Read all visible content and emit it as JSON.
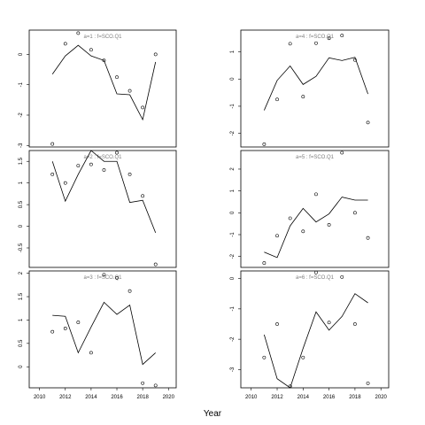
{
  "chart_data": {
    "type": "scatter",
    "xlabel": "Year",
    "x_ticks": [
      2010,
      2012,
      2014,
      2016,
      2018,
      2020
    ],
    "xlim": [
      2009.2,
      2020.6
    ],
    "panels": [
      {
        "title": "a=1 : f=SCO.Q1",
        "ylim": [
          -3.05,
          0.8
        ],
        "y_ticks": [
          0,
          -1,
          -2,
          -3
        ],
        "points": {
          "x": [
            2011,
            2012,
            2013,
            2014,
            2015,
            2016,
            2017,
            2018,
            2019
          ],
          "y": [
            -2.95,
            0.35,
            0.7,
            0.15,
            -0.2,
            -0.75,
            -1.2,
            -1.75,
            0.0
          ]
        },
        "line": {
          "x": [
            2011,
            2012,
            2013,
            2014,
            2015,
            2016,
            2017,
            2018,
            2019
          ],
          "y": [
            -0.65,
            -0.05,
            0.3,
            -0.05,
            -0.2,
            -1.3,
            -1.33,
            -2.15,
            -0.25
          ]
        }
      },
      {
        "title": "a=2 : f=SCO.Q1",
        "ylim": [
          -0.95,
          1.75
        ],
        "y_ticks": [
          1.5,
          1.0,
          0.5,
          0.0,
          -0.5
        ],
        "points": {
          "x": [
            2011,
            2012,
            2013,
            2014,
            2015,
            2016,
            2017,
            2018,
            2019
          ],
          "y": [
            1.2,
            1.0,
            1.4,
            1.43,
            1.3,
            1.7,
            1.2,
            0.7,
            -0.88
          ]
        },
        "line": {
          "x": [
            2011,
            2012,
            2013,
            2014,
            2015,
            2016,
            2017,
            2018,
            2019
          ],
          "y": [
            1.5,
            0.58,
            1.2,
            1.75,
            1.5,
            1.5,
            0.55,
            0.6,
            -0.15
          ]
        }
      },
      {
        "title": "a=3 : f=SCO.Q1",
        "ylim": [
          -0.45,
          2.05
        ],
        "y_ticks": [
          2.0,
          1.5,
          1.0,
          0.5,
          0.0
        ],
        "points": {
          "x": [
            2011,
            2012,
            2013,
            2014,
            2015,
            2016,
            2017,
            2018,
            2019
          ],
          "y": [
            0.75,
            0.82,
            0.95,
            0.3,
            1.97,
            1.9,
            1.62,
            -0.35,
            -0.4
          ]
        },
        "line": {
          "x": [
            2011,
            2012,
            2013,
            2014,
            2015,
            2016,
            2017,
            2018,
            2019
          ],
          "y": [
            1.1,
            1.08,
            0.3,
            0.85,
            1.38,
            1.12,
            1.32,
            0.05,
            0.3
          ]
        }
      },
      {
        "title": "a=4 : f=SCO.Q1",
        "ylim": [
          -2.5,
          1.8
        ],
        "y_ticks": [
          1,
          0,
          -1,
          -2
        ],
        "points": {
          "x": [
            2011,
            2012,
            2013,
            2014,
            2015,
            2016,
            2017,
            2018,
            2019
          ],
          "y": [
            -2.4,
            -0.75,
            1.3,
            -0.65,
            1.32,
            1.5,
            1.6,
            0.7,
            -1.6
          ]
        },
        "line": {
          "x": [
            2011,
            2012,
            2013,
            2014,
            2015,
            2016,
            2017,
            2018,
            2019
          ],
          "y": [
            -1.15,
            -0.05,
            0.48,
            -0.2,
            0.1,
            0.78,
            0.68,
            0.8,
            -0.55
          ]
        }
      },
      {
        "title": "a=5 : f=SCO.Q1",
        "ylim": [
          -2.5,
          2.85
        ],
        "y_ticks": [
          2,
          1,
          0,
          -1,
          -2
        ],
        "points": {
          "x": [
            2011,
            2012,
            2013,
            2014,
            2015,
            2016,
            2017,
            2018,
            2019
          ],
          "y": [
            -2.3,
            -1.05,
            -0.25,
            -0.85,
            0.85,
            -0.55,
            2.75,
            0.0,
            -1.15
          ]
        },
        "line": {
          "x": [
            2011,
            2012,
            2013,
            2014,
            2015,
            2016,
            2017,
            2018,
            2019
          ],
          "y": [
            -1.8,
            -2.05,
            -0.6,
            0.2,
            -0.42,
            -0.05,
            0.72,
            0.58,
            0.58
          ]
        }
      },
      {
        "title": "a=6 : f=SCO.Q1",
        "ylim": [
          -3.6,
          0.25
        ],
        "y_ticks": [
          0,
          -1,
          -2,
          -3
        ],
        "points": {
          "x": [
            2011,
            2012,
            2013,
            2014,
            2015,
            2016,
            2017,
            2018,
            2019
          ],
          "y": [
            -2.6,
            -1.5,
            -3.55,
            -2.6,
            0.2,
            -1.45,
            0.05,
            -1.5,
            -3.45
          ]
        },
        "line": {
          "x": [
            2011,
            2012,
            2013,
            2014,
            2015,
            2016,
            2017,
            2018,
            2019
          ],
          "y": [
            -1.85,
            -3.3,
            -3.6,
            -2.3,
            -1.1,
            -1.7,
            -1.25,
            -0.5,
            -0.8
          ]
        }
      }
    ]
  }
}
